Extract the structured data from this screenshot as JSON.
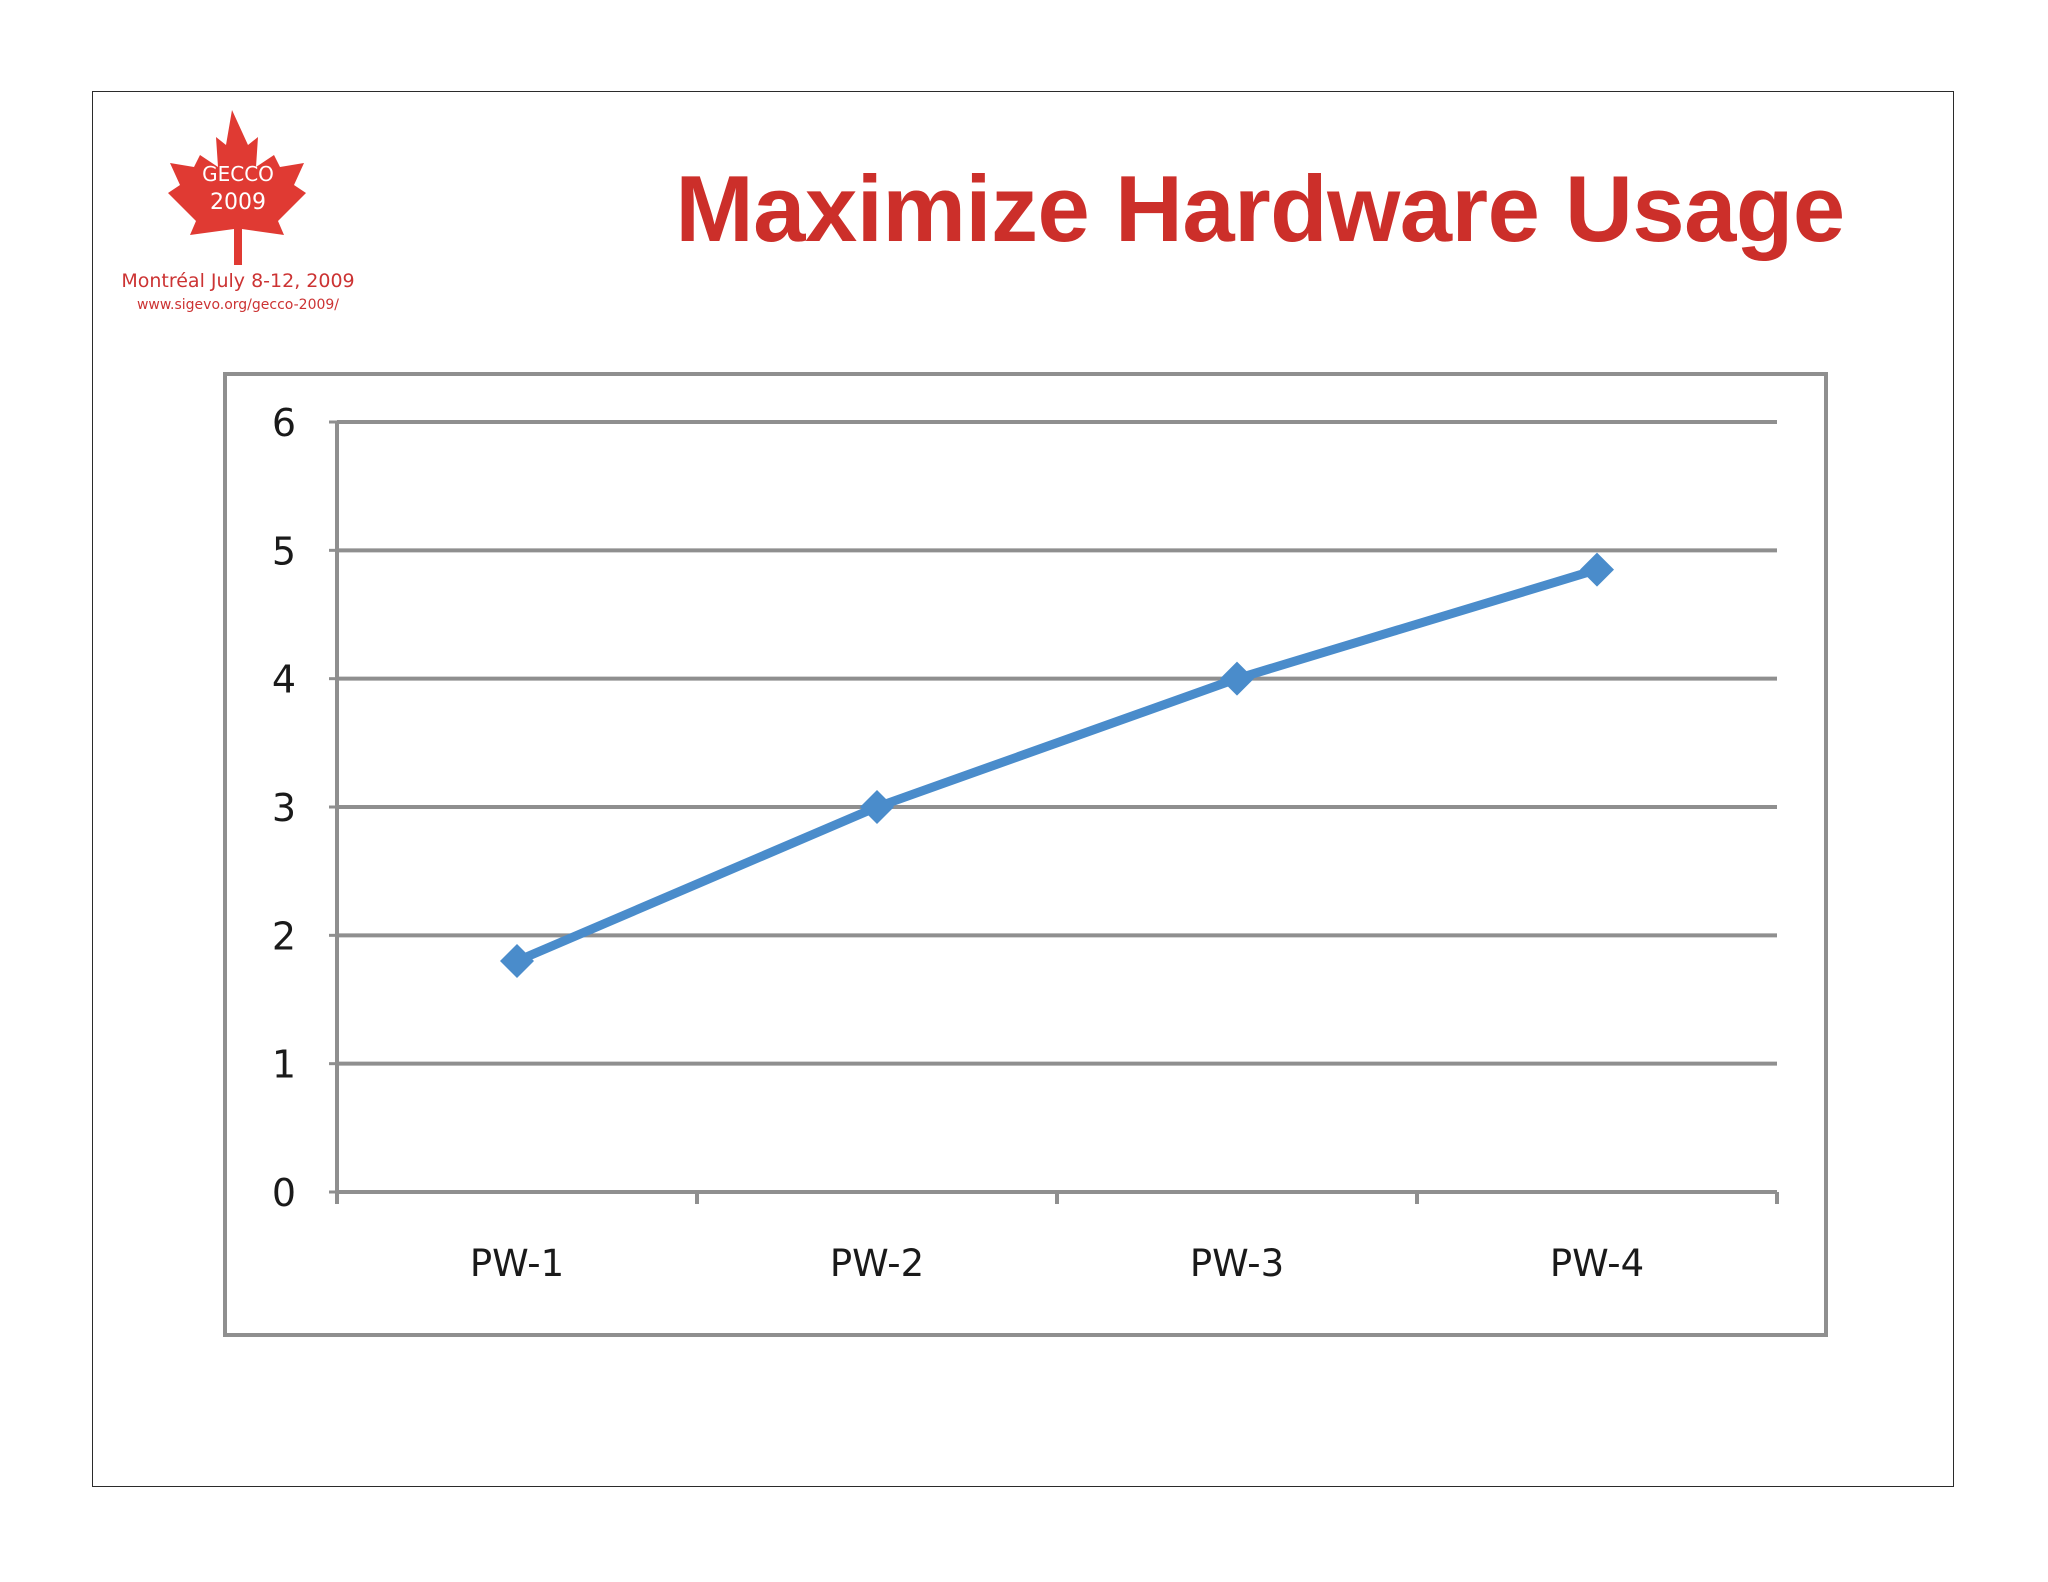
{
  "slide": {
    "title": "Maximize Hardware Usage",
    "logo": {
      "emblem_line1": "GECCO",
      "emblem_line2": "2009",
      "caption_line1": "Montréal July 8-12, 2009",
      "caption_line2": "www.sigevo.org/gecco-2009/",
      "color": "#cc3333"
    },
    "title_color": "#cc2f2a"
  },
  "chart_data": {
    "type": "line",
    "categories": [
      "PW-1",
      "PW-2",
      "PW-3",
      "PW-4"
    ],
    "series": [
      {
        "values": [
          1.8,
          3.0,
          4.0,
          4.85
        ],
        "color": "#4a8ccb",
        "marker": "diamond"
      }
    ],
    "title": "",
    "xlabel": "",
    "ylabel": "",
    "ylim": [
      0,
      6
    ],
    "yticks": [
      "0",
      "1",
      "2",
      "3",
      "4",
      "5",
      "6"
    ],
    "grid": true,
    "legend": "none"
  }
}
